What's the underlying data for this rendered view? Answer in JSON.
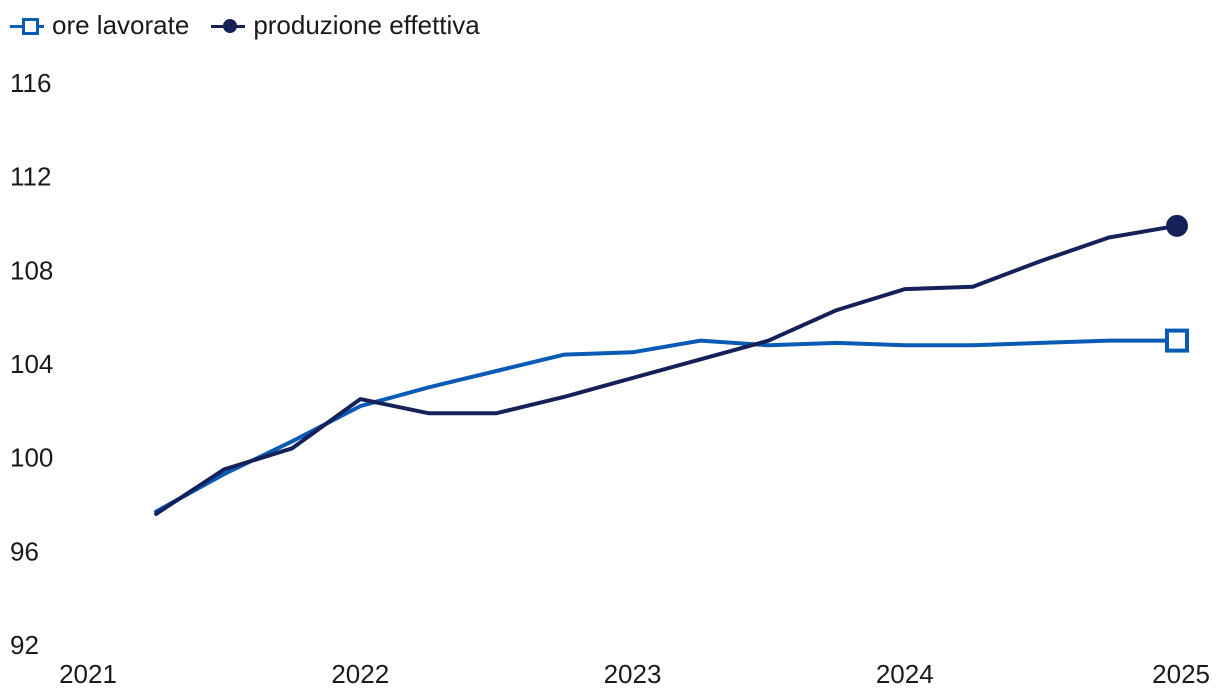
{
  "chart_data": {
    "type": "line",
    "title": "",
    "xlabel": "",
    "ylabel": "",
    "xlim": [
      2021,
      2025
    ],
    "ylim": [
      92,
      116
    ],
    "yticks": [
      92,
      96,
      100,
      104,
      108,
      112,
      116
    ],
    "xticks": [
      2021,
      2022,
      2023,
      2024,
      2025
    ],
    "grid": false,
    "legend_position": "top-left",
    "x": [
      2021.25,
      2021.5,
      2021.75,
      2022.0,
      2022.25,
      2022.5,
      2022.75,
      2023.0,
      2023.25,
      2023.5,
      2023.75,
      2024.0,
      2024.25,
      2024.5,
      2024.75,
      2025.0
    ],
    "series": [
      {
        "name": "ore lavorate",
        "color": "#0a5bb5",
        "marker": "square-open",
        "values": [
          97.7,
          99.3,
          100.7,
          102.2,
          103.0,
          103.7,
          104.4,
          104.5,
          105.0,
          104.8,
          104.9,
          104.8,
          104.8,
          104.9,
          105.0,
          105.0
        ]
      },
      {
        "name": "produzione effettiva",
        "color": "#16215a",
        "marker": "dot-filled",
        "values": [
          97.6,
          99.5,
          100.4,
          102.5,
          101.9,
          101.9,
          102.6,
          103.4,
          104.2,
          105.0,
          106.3,
          107.2,
          107.3,
          108.4,
          109.4,
          109.9
        ]
      }
    ]
  }
}
